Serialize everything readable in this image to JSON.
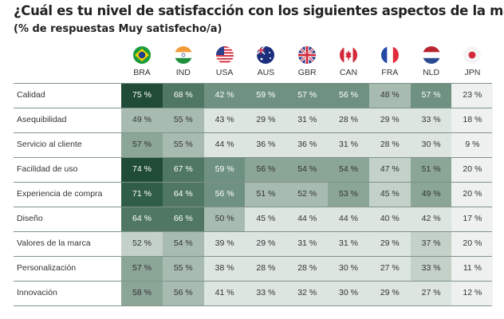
{
  "title": "¿Cuál es tu nivel de satisfacción con los siguientes aspectos de la marca?",
  "subtitle": "(% de respuestas Muy satisfecho/a)",
  "chart_data": {
    "type": "heatmap",
    "columns": [
      "BRA",
      "IND",
      "USA",
      "AUS",
      "GBR",
      "CAN",
      "FRA",
      "NLD",
      "JPN"
    ],
    "column_icons": [
      "flag-brazil",
      "flag-india",
      "flag-usa",
      "flag-australia",
      "flag-uk",
      "flag-canada",
      "flag-france",
      "flag-netherlands",
      "flag-japan"
    ],
    "rows": [
      "Calidad",
      "Asequibilidad",
      "Servicio al cliente",
      "Facilidad de uso",
      "Experiencia de compra",
      "Diseño",
      "Valores de la marca",
      "Personalización",
      "Innovación"
    ],
    "values": [
      [
        75,
        68,
        42,
        59,
        57,
        56,
        48,
        57,
        23
      ],
      [
        49,
        55,
        43,
        29,
        31,
        28,
        29,
        33,
        18
      ],
      [
        57,
        55,
        44,
        36,
        36,
        31,
        28,
        30,
        9
      ],
      [
        74,
        67,
        59,
        56,
        54,
        54,
        47,
        51,
        20
      ],
      [
        71,
        64,
        56,
        51,
        52,
        53,
        45,
        49,
        20
      ],
      [
        64,
        66,
        50,
        45,
        44,
        44,
        40,
        42,
        17
      ],
      [
        52,
        54,
        39,
        29,
        31,
        31,
        29,
        37,
        20
      ],
      [
        57,
        55,
        38,
        28,
        28,
        30,
        27,
        33,
        11
      ],
      [
        58,
        56,
        41,
        33,
        32,
        30,
        29,
        27,
        12
      ]
    ],
    "unit": "%",
    "shade_levels": [
      [
        8,
        6,
        5,
        5,
        5,
        5,
        3,
        5,
        0
      ],
      [
        3,
        3,
        1,
        1,
        1,
        1,
        1,
        1,
        0
      ],
      [
        4,
        3,
        1,
        1,
        1,
        1,
        1,
        1,
        0
      ],
      [
        8,
        6,
        5,
        4,
        4,
        4,
        2,
        4,
        0
      ],
      [
        7,
        6,
        5,
        3,
        3,
        4,
        2,
        4,
        0
      ],
      [
        6,
        6,
        3,
        1,
        1,
        1,
        1,
        1,
        0
      ],
      [
        2,
        3,
        1,
        1,
        1,
        1,
        1,
        2,
        0
      ],
      [
        4,
        3,
        1,
        1,
        1,
        1,
        1,
        2,
        0
      ],
      [
        4,
        3,
        1,
        1,
        1,
        1,
        1,
        1,
        0
      ]
    ],
    "palette": [
      "#eef1ef",
      "#dde5e0",
      "#c3d1c9",
      "#a8bbb1",
      "#8ba597",
      "#6f9181",
      "#4f7763",
      "#2f5d48",
      "#1f4b37"
    ]
  }
}
